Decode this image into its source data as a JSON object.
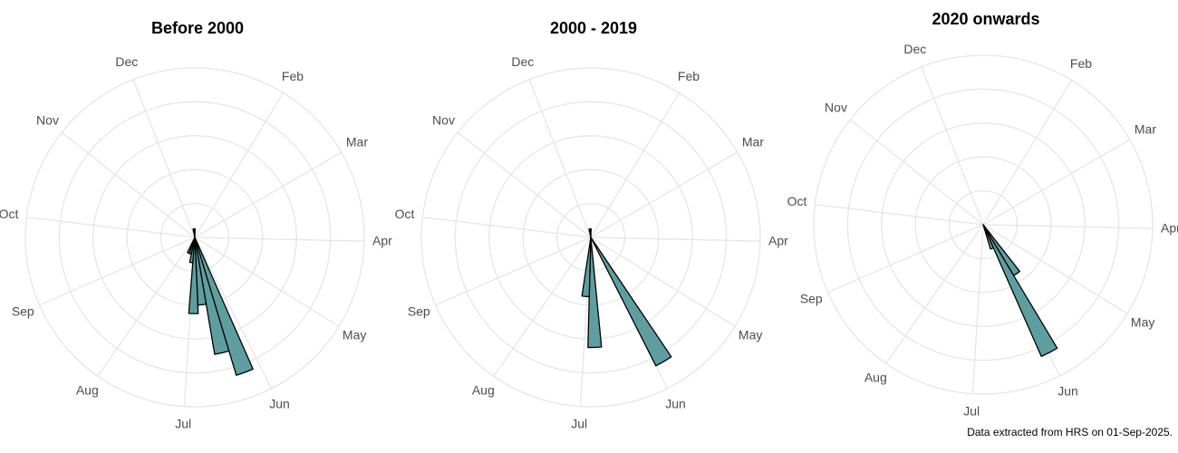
{
  "chart_data": [
    {
      "type": "polar-bar",
      "title": "Before 2000",
      "color": "#5f9ea0",
      "x": [
        154,
        161,
        168,
        175,
        182,
        189,
        196,
        343,
        350
      ],
      "values": [
        17,
        14,
        8,
        9,
        3,
        2,
        2,
        1,
        1
      ],
      "xlim": [
        0,
        355
      ],
      "xticks": [
        {
          "value": 31,
          "label": "Feb"
        },
        {
          "value": 59,
          "label": "Mar"
        },
        {
          "value": 90,
          "label": "Apr"
        },
        {
          "value": 120,
          "label": "May"
        },
        {
          "value": 151,
          "label": "Jun"
        },
        {
          "value": 181,
          "label": "Jul"
        },
        {
          "value": 212,
          "label": "Aug"
        },
        {
          "value": 243,
          "label": "Sep"
        },
        {
          "value": 273,
          "label": "Oct"
        },
        {
          "value": 304,
          "label": "Nov"
        },
        {
          "value": 334,
          "label": "Dec"
        }
      ],
      "ylim": [
        0,
        20
      ],
      "yticks": [
        4,
        8,
        12,
        16,
        20
      ],
      "grid": true
    },
    {
      "type": "polar-bar",
      "title": "2000 - 2019",
      "color": "#5f9ea0",
      "x": [
        144,
        172,
        179,
        343,
        350
      ],
      "values": [
        17,
        13,
        7,
        1,
        1
      ],
      "xlim": [
        0,
        355
      ],
      "xticks": [
        {
          "value": 31,
          "label": "Feb"
        },
        {
          "value": 59,
          "label": "Mar"
        },
        {
          "value": 90,
          "label": "Apr"
        },
        {
          "value": 120,
          "label": "May"
        },
        {
          "value": 151,
          "label": "Jun"
        },
        {
          "value": 181,
          "label": "Jul"
        },
        {
          "value": 212,
          "label": "Aug"
        },
        {
          "value": 243,
          "label": "Sep"
        },
        {
          "value": 273,
          "label": "Oct"
        },
        {
          "value": 304,
          "label": "Nov"
        },
        {
          "value": 334,
          "label": "Dec"
        }
      ],
      "ylim": [
        0,
        20
      ],
      "yticks": [
        4,
        8,
        12,
        16,
        20
      ],
      "grid": true
    },
    {
      "type": "polar-bar",
      "title": "2020 onwards",
      "color": "#5f9ea0",
      "x": [
        140,
        147,
        154
      ],
      "values": [
        7,
        17,
        3
      ],
      "xlim": [
        0,
        355
      ],
      "xticks": [
        {
          "value": 31,
          "label": "Feb"
        },
        {
          "value": 59,
          "label": "Mar"
        },
        {
          "value": 90,
          "label": "Apr"
        },
        {
          "value": 120,
          "label": "May"
        },
        {
          "value": 151,
          "label": "Jun"
        },
        {
          "value": 181,
          "label": "Jul"
        },
        {
          "value": 212,
          "label": "Aug"
        },
        {
          "value": 243,
          "label": "Sep"
        },
        {
          "value": 273,
          "label": "Oct"
        },
        {
          "value": 304,
          "label": "Nov"
        },
        {
          "value": 334,
          "label": "Dec"
        }
      ],
      "ylim": [
        0,
        20
      ],
      "yticks": [
        4,
        8,
        12,
        16,
        20
      ],
      "grid": true
    }
  ],
  "caption": "Data extracted from HRS on 01-Sep-2025."
}
